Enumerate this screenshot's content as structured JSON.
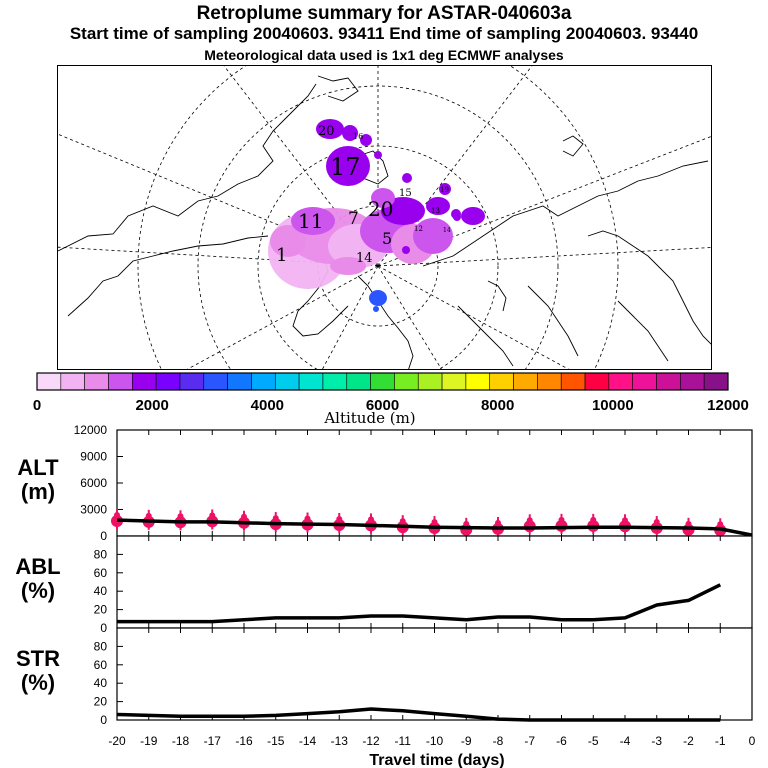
{
  "header": {
    "title": "Retroplume summary for ASTAR-040603a",
    "sampling": "Start time of sampling 20040603. 93411     End time of sampling 20040603. 93440",
    "met": "Meteorological data used is 1x1 deg ECMWF analyses"
  },
  "colorbar": {
    "label": "Altitude (m)",
    "tick_labels": [
      "0",
      "2000",
      "4000",
      "6000",
      "8000",
      "10000",
      "12000"
    ],
    "colors": [
      "#f9d9f9",
      "#f2b3f2",
      "#e98ce9",
      "#cc55ee",
      "#9900ee",
      "#7a00ff",
      "#5a2cf0",
      "#2a55ff",
      "#1177ff",
      "#00aaff",
      "#00ccee",
      "#00e5d0",
      "#00eeaa",
      "#00e588",
      "#33dd33",
      "#77ee22",
      "#aaf022",
      "#ddf522",
      "#ffff00",
      "#ffd000",
      "#ffaa00",
      "#ff8800",
      "#ff5500",
      "#ff0044",
      "#ff1188",
      "#ee1199",
      "#cc1199",
      "#aa1199",
      "#881188"
    ]
  },
  "map_labels": [
    {
      "text": "20"
    },
    {
      "text": "16"
    },
    {
      "text": "17"
    },
    {
      "text": "15"
    },
    {
      "text": "20"
    },
    {
      "text": "19"
    },
    {
      "text": "11"
    },
    {
      "text": "7"
    },
    {
      "text": "5"
    },
    {
      "text": "1"
    },
    {
      "text": "14"
    },
    {
      "text": "13"
    },
    {
      "text": "12"
    },
    {
      "text": "14"
    }
  ],
  "chart_data": [
    {
      "type": "line",
      "panel": "ALT",
      "ylabel": "ALT\n(m)",
      "ylabel_lines": [
        "ALT",
        "(m)"
      ],
      "ylim": [
        0,
        12000
      ],
      "yticks": [
        0,
        3000,
        6000,
        9000,
        12000
      ],
      "x": [
        -20,
        -19,
        -18,
        -17,
        -16,
        -15,
        -14,
        -13,
        -12,
        -11,
        -10,
        -9,
        -8,
        -7,
        -6,
        -5,
        -4,
        -3,
        -2,
        -1,
        0
      ],
      "values": [
        1800,
        1700,
        1600,
        1600,
        1500,
        1400,
        1350,
        1300,
        1200,
        1100,
        1000,
        950,
        900,
        900,
        950,
        1000,
        1000,
        950,
        900,
        800,
        100
      ],
      "markers": [
        1700,
        1600,
        1550,
        1650,
        1500,
        1350,
        1300,
        1250,
        1200,
        1000,
        900,
        700,
        800,
        1100,
        1150,
        1150,
        1100,
        900,
        700,
        650
      ],
      "marker_color": "#ee1166"
    },
    {
      "type": "line",
      "panel": "ABL",
      "ylabel_lines": [
        "ABL",
        "(%)"
      ],
      "ylim": [
        0,
        100
      ],
      "yticks": [
        0,
        20,
        40,
        60,
        80
      ],
      "x": [
        -20,
        -19,
        -18,
        -17,
        -16,
        -15,
        -14,
        -13,
        -12,
        -11,
        -10,
        -9,
        -8,
        -7,
        -6,
        -5,
        -4,
        -3,
        -2,
        -1
      ],
      "values": [
        7,
        7,
        7,
        7,
        9,
        11,
        11,
        11,
        13,
        13,
        11,
        9,
        12,
        12,
        9,
        9,
        11,
        25,
        30,
        47
      ]
    },
    {
      "type": "line",
      "panel": "STR",
      "ylabel_lines": [
        "STR",
        "(%)"
      ],
      "ylim": [
        0,
        100
      ],
      "yticks": [
        0,
        20,
        40,
        60,
        80
      ],
      "x": [
        -20,
        -19,
        -18,
        -17,
        -16,
        -15,
        -14,
        -13,
        -12,
        -11,
        -10,
        -9,
        -8,
        -7,
        -6,
        -5,
        -4,
        -3,
        -2,
        -1
      ],
      "values": [
        6,
        5,
        4,
        4,
        4,
        5,
        7,
        9,
        12,
        10,
        7,
        4,
        1,
        0,
        0,
        0,
        0,
        0,
        0,
        0
      ]
    }
  ],
  "x_axis": {
    "tick_labels": [
      "-20",
      "-19",
      "-18",
      "-17",
      "-16",
      "-15",
      "-14",
      "-13",
      "-12",
      "-11",
      "-10",
      "-9",
      "-8",
      "-7",
      "-6",
      "-5",
      "-4",
      "-3",
      "-2",
      "-1",
      "0"
    ],
    "xlabel": "Travel time (days)"
  }
}
